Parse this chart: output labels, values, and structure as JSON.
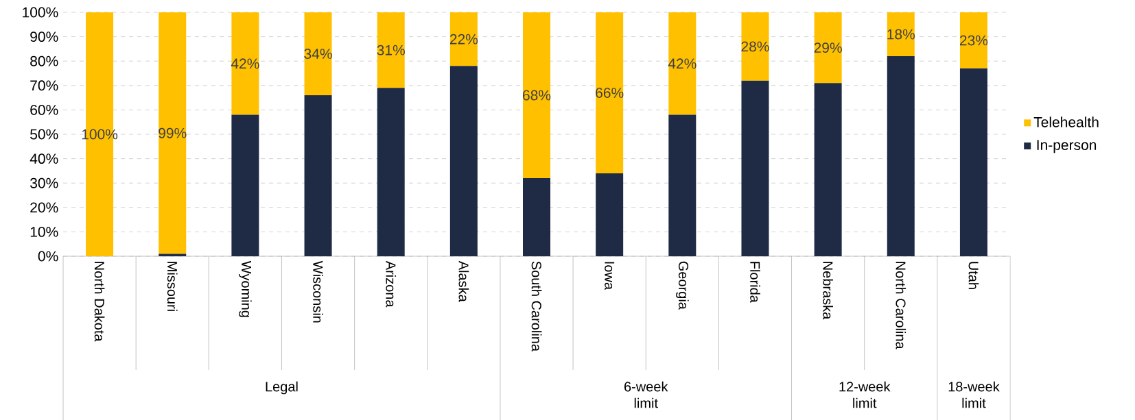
{
  "chart_data": {
    "type": "bar",
    "stacked": true,
    "categories": [
      "North Dakota",
      "Missouri",
      "Wyoming",
      "Wisconsin",
      "Arizona",
      "Alaska",
      "South Carolina",
      "Iowa",
      "Georgia",
      "Florida",
      "Nebraska",
      "North Carolina",
      "Utah"
    ],
    "series": [
      {
        "name": "In-person",
        "color": "#1f2a44",
        "values": [
          0,
          1,
          58,
          66,
          69,
          78,
          32,
          34,
          58,
          72,
          71,
          82,
          77
        ]
      },
      {
        "name": "Telehealth",
        "color": "#ffc000",
        "values": [
          100,
          99,
          42,
          34,
          31,
          22,
          68,
          66,
          42,
          28,
          29,
          18,
          23
        ],
        "value_labels": [
          "100%",
          "99%",
          "42%",
          "34%",
          "31%",
          "22%",
          "68%",
          "66%",
          "42%",
          "28%",
          "29%",
          "18%",
          "23%"
        ]
      }
    ],
    "ylim": [
      0,
      100
    ],
    "yticks": [
      {
        "value": 0,
        "label": "0%"
      },
      {
        "value": 10,
        "label": "10%"
      },
      {
        "value": 20,
        "label": "20%"
      },
      {
        "value": 30,
        "label": "30%"
      },
      {
        "value": 40,
        "label": "40%"
      },
      {
        "value": 50,
        "label": "50%"
      },
      {
        "value": 60,
        "label": "60%"
      },
      {
        "value": 70,
        "label": "70%"
      },
      {
        "value": 80,
        "label": "80%"
      },
      {
        "value": 90,
        "label": "90%"
      },
      {
        "value": 100,
        "label": "100%"
      }
    ],
    "grid": "y",
    "legend": "right",
    "annotations": [
      "Legal",
      "6-week limit",
      "12-week limit",
      "18-week limit"
    ]
  }
}
